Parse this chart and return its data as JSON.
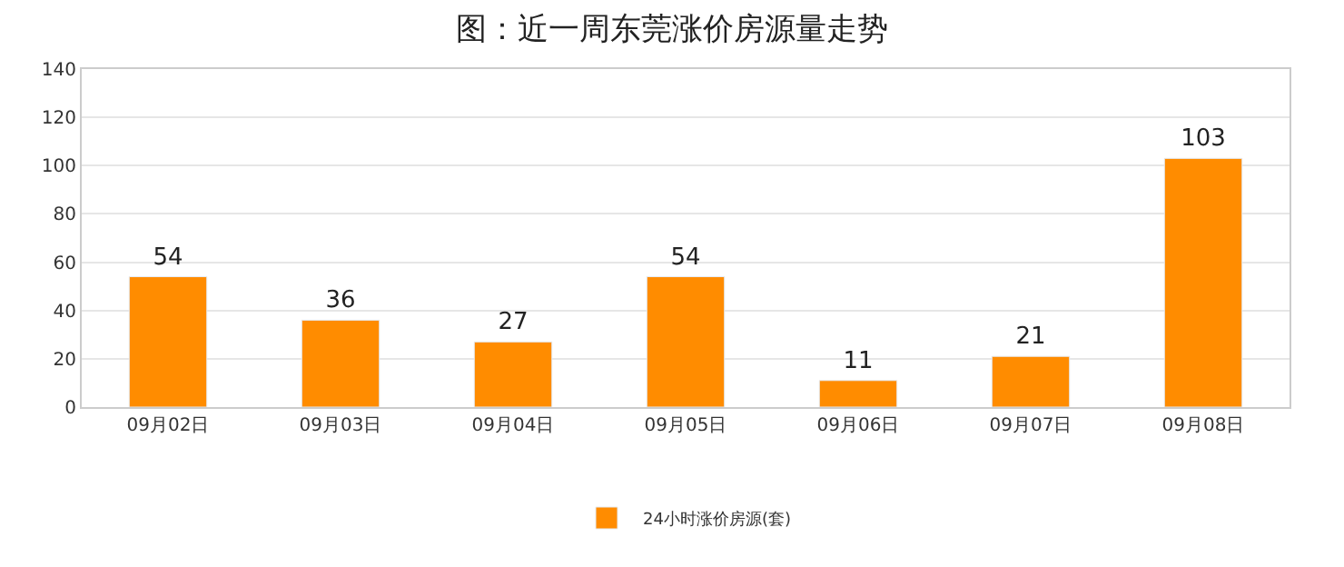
{
  "chart_data": {
    "type": "bar",
    "title": "图：近一周东莞涨价房源量走势",
    "categories": [
      "09月02日",
      "09月03日",
      "09月04日",
      "09月05日",
      "09月06日",
      "09月07日",
      "09月08日"
    ],
    "series": [
      {
        "name": "24小时涨价房源(套)",
        "color": "#ff8c00",
        "values": [
          54,
          36,
          27,
          54,
          11,
          21,
          103
        ]
      }
    ],
    "ylim": [
      0,
      140
    ],
    "yticks": [
      0,
      20,
      40,
      60,
      80,
      100,
      120,
      140
    ],
    "grid": "y",
    "legend": "bottom",
    "data_labels": true
  }
}
